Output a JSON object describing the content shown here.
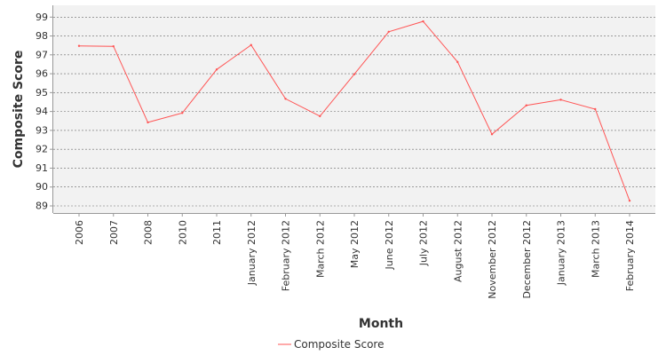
{
  "chart_data": {
    "type": "line",
    "categories": [
      "2006",
      "2007",
      "2008",
      "2010",
      "2011",
      "January 2012",
      "February 2012",
      "March 2012",
      "May 2012",
      "June 2012",
      "July 2012",
      "August 2012",
      "November 2012",
      "December 2012",
      "January 2013",
      "March 2013",
      "February 2014"
    ],
    "series": [
      {
        "name": "Composite Score",
        "values": [
          97.45,
          97.43,
          93.4,
          93.9,
          96.2,
          97.5,
          94.65,
          93.73,
          95.95,
          98.2,
          98.75,
          96.6,
          92.77,
          94.3,
          94.6,
          94.1,
          89.25
        ],
        "color": "#ff5555"
      }
    ],
    "xlabel": "Month",
    "ylabel": "Composite Score",
    "ylim": [
      88.6,
      99.6
    ],
    "yticks": [
      89,
      90,
      91,
      92,
      93,
      94,
      95,
      96,
      97,
      98,
      99
    ],
    "grid": true,
    "legend_position": "bottom-center",
    "colors": {
      "plot_background": "#f2f2f2",
      "gridline": "#6a6a6a",
      "axis": "#999999"
    }
  }
}
